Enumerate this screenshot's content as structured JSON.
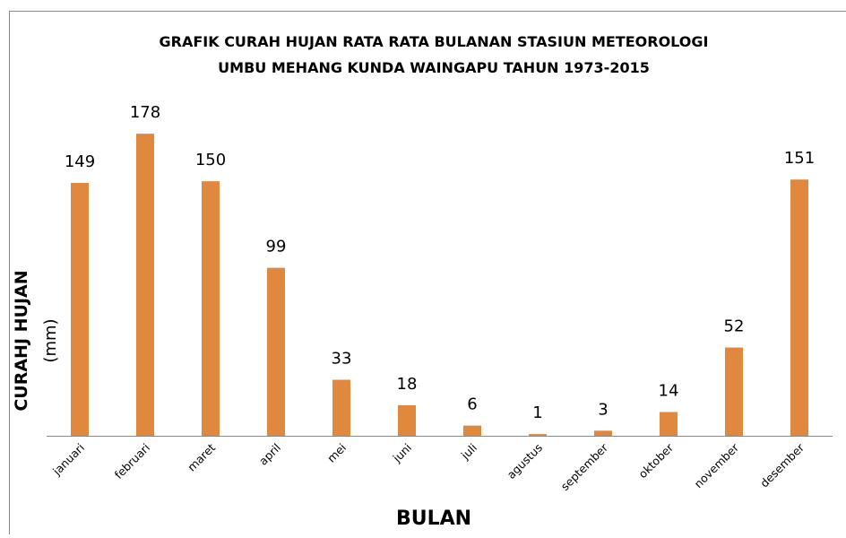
{
  "chart_data": {
    "type": "bar",
    "title": [
      "GRAFIK CURAH HUJAN RATA RATA BULANAN STASIUN METEOROLOGI",
      "UMBU MEHANG KUNDA WAINGAPU TAHUN 1973-2015"
    ],
    "ylabel": [
      "CURAHJ HUJAN",
      "(mm)"
    ],
    "xlabel": "BULAN",
    "categories": [
      "januari",
      "februari",
      "maret",
      "april",
      "mei",
      "juni",
      "juli",
      "agustus",
      "september",
      "oktober",
      "november",
      "desember"
    ],
    "values": [
      149,
      178,
      150,
      99,
      33,
      18,
      6,
      1,
      3,
      14,
      52,
      151
    ],
    "color": "#e0883e",
    "ylim": [
      0,
      200
    ],
    "data_labels": true
  }
}
